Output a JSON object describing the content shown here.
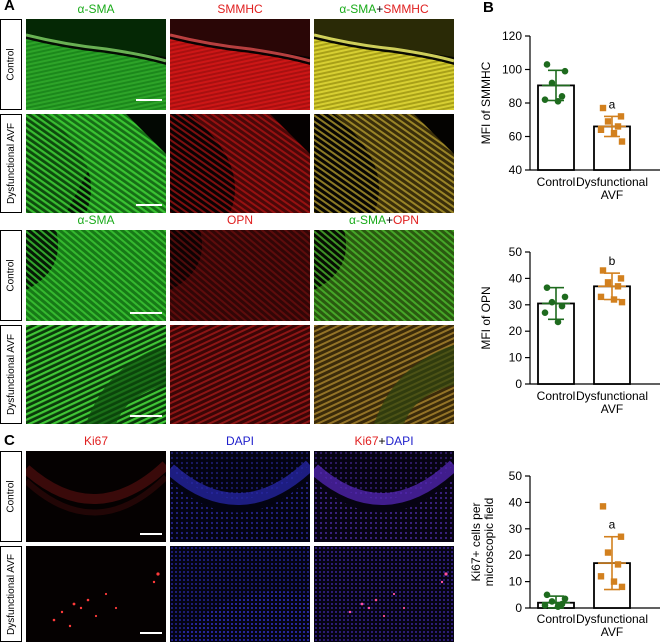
{
  "panels": {
    "a": {
      "letter": "A",
      "set1": {
        "col1": "α-SMA",
        "col2": "SMMHC",
        "col3_left": "α-SMA",
        "col3_plus": "+",
        "col3_right": "SMMHC"
      },
      "set2": {
        "col1": "α-SMA",
        "col2": "OPN",
        "col3_left": "α-SMA",
        "col3_plus": "+",
        "col3_right": "OPN"
      },
      "rows": [
        "Control",
        "Dysfunctional AVF"
      ]
    },
    "b": {
      "letter": "B"
    },
    "c": {
      "letter": "C",
      "cols": {
        "col1": "Ki67",
        "col2": "DAPI",
        "col3_left": "Ki67",
        "col3_plus": "+",
        "col3_right": "DAPI"
      },
      "rows": [
        "Control",
        "Dysfunctional AVF"
      ]
    }
  },
  "colors": {
    "green_label": "#1aab1a",
    "red_label": "#e02020",
    "blue_label": "#2020cc",
    "control": "#1e6b1e",
    "avf": "#d2801e"
  },
  "chart_data": [
    {
      "type": "bar",
      "ylabel": "MFI of SMMHC",
      "ylim": [
        40,
        120
      ],
      "yticks": [
        40,
        60,
        80,
        100,
        120
      ],
      "categories": [
        "Control",
        "Dysfunctional AVF"
      ],
      "category_lines": [
        [
          "Control"
        ],
        [
          "Dysfunctional",
          "AVF"
        ]
      ],
      "means": [
        90.5,
        66
      ],
      "sd": [
        9,
        6
      ],
      "points": [
        [
          103,
          99,
          92,
          84,
          82,
          81
        ],
        [
          77,
          72,
          69,
          66,
          64,
          62,
          57
        ]
      ],
      "annotations": [
        "",
        "a"
      ]
    },
    {
      "type": "bar",
      "ylabel": "MFI of OPN",
      "ylim": [
        0,
        50
      ],
      "yticks": [
        0,
        10,
        20,
        30,
        40,
        50
      ],
      "categories": [
        "Control",
        "Dysfunctional AVF"
      ],
      "category_lines": [
        [
          "Control"
        ],
        [
          "Dysfunctional",
          "AVF"
        ]
      ],
      "means": [
        30.5,
        37
      ],
      "sd": [
        6,
        5
      ],
      "points": [
        [
          36.5,
          33,
          31,
          29.5,
          27,
          23.5
        ],
        [
          43,
          40,
          38.5,
          37,
          33,
          32,
          31
        ]
      ],
      "annotations": [
        "",
        "b"
      ]
    },
    {
      "type": "bar",
      "ylabel_lines": [
        "Ki67+ cells per",
        "microscopic field"
      ],
      "ylim": [
        0,
        50
      ],
      "yticks": [
        0,
        10,
        20,
        30,
        40,
        50
      ],
      "categories": [
        "Control",
        "Dysfunctional AVF"
      ],
      "category_lines": [
        [
          "Control"
        ],
        [
          "Dysfunctional",
          "AVF"
        ]
      ],
      "means": [
        2,
        17
      ],
      "sd": [
        2.5,
        10
      ],
      "points": [
        [
          5,
          3.5,
          2.5,
          1.5,
          1,
          0.5
        ],
        [
          38.5,
          27,
          21,
          16.5,
          12,
          10,
          8
        ]
      ],
      "annotations": [
        "",
        "a"
      ]
    }
  ]
}
